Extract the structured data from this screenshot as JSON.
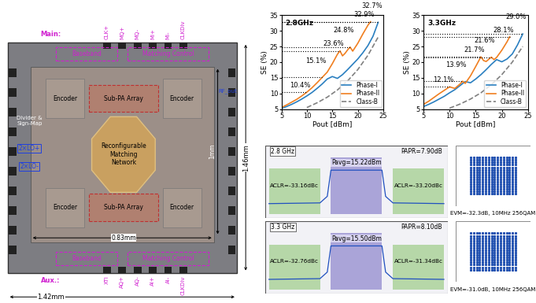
{
  "die_photo": {
    "top_label": "Main:",
    "top_pins": [
      "CLK+",
      "MQ+",
      "MQ-",
      "MI+",
      "MI-",
      "CLKDiv"
    ],
    "bottom_label": "Aux.:",
    "bottom_pins": [
      "XTI",
      "AQ+",
      "AQ-",
      "AI+",
      "AI-",
      "CLKDiv"
    ],
    "baseband": "Baseband",
    "matching_control": "Matching Control",
    "encoder": "Encoder",
    "sub_pa_array": "Sub-PA Array",
    "matching_network": "Reconfigurable\nMatching\nNetwork",
    "divider": "Divider &\nSign-Map",
    "lo_plus": "2×LO+",
    "lo_minus": "2×LO-",
    "rf_out": "RF_out",
    "height": "1.46mm",
    "width": "1.42mm",
    "core_width": "0.83mm",
    "core_height": "1mm"
  },
  "chart_data": [
    {
      "type": "line",
      "title": "2.8GHz",
      "xlabel": "Pout [dBm]",
      "ylabel": "SE (%)",
      "xlim": [
        5,
        25
      ],
      "xticks": [
        5,
        10,
        15,
        20,
        25
      ],
      "ylim": [
        5,
        35
      ],
      "yticks": [
        5,
        10,
        15,
        20,
        25,
        30,
        35
      ],
      "legend": "lower right",
      "series": [
        {
          "name": "Phase-I",
          "color": "#2a7fc0",
          "line_style": "solid",
          "x": [
            5,
            6,
            7,
            8,
            9,
            10,
            11,
            12,
            13,
            14,
            15,
            16,
            17,
            18,
            19,
            20,
            21,
            22,
            23,
            24
          ],
          "values": [
            5.2,
            5.8,
            6.5,
            7.3,
            8.2,
            9.2,
            10.3,
            11.6,
            13.0,
            14.6,
            15.4,
            14.8,
            16.0,
            17.6,
            19.3,
            21.0,
            23.0,
            25.3,
            28.3,
            32.7
          ]
        },
        {
          "name": "Phase-II",
          "color": "#f07f20",
          "line_style": "solid",
          "x": [
            5,
            6,
            7,
            8,
            9,
            10,
            11,
            12,
            13,
            14,
            15,
            16,
            16.5,
            17,
            17.5,
            18,
            18.5,
            19,
            20,
            21,
            22,
            22.5
          ],
          "values": [
            5.5,
            6.3,
            7.2,
            8.1,
            9.2,
            10.4,
            11.8,
            13.4,
            15.1,
            16.8,
            19.5,
            22.5,
            23.6,
            22.0,
            22.8,
            23.9,
            24.8,
            23.5,
            26.0,
            29.0,
            31.8,
            32.9
          ]
        },
        {
          "name": "Class-B",
          "color": "#808080",
          "line_style": "dashed",
          "x": [
            10,
            12,
            14,
            16,
            18,
            20,
            22,
            24
          ],
          "values": [
            5.5,
            7.0,
            8.8,
            11.1,
            14.0,
            17.6,
            22.2,
            28.0
          ]
        }
      ],
      "annotations": [
        {
          "x": 10,
          "y": 10.4,
          "label": "10.4%"
        },
        {
          "x": 13,
          "y": 15.1,
          "label": "15.1%"
        },
        {
          "x": 16.5,
          "y": 23.6,
          "label": "23.6%"
        },
        {
          "x": 18.5,
          "y": 24.8,
          "label": "24.8%"
        },
        {
          "x": 22.5,
          "y": 32.9,
          "label": "32.9%"
        },
        {
          "x": 24,
          "y": 32.7,
          "label": "32.7%"
        }
      ]
    },
    {
      "type": "line",
      "title": "3.3GHz",
      "xlabel": "Pout [dBm]",
      "ylabel": "SE (%)",
      "xlim": [
        5,
        25
      ],
      "xticks": [
        5,
        10,
        15,
        20,
        25
      ],
      "ylim": [
        5,
        35
      ],
      "yticks": [
        5,
        10,
        15,
        20,
        25,
        30,
        35
      ],
      "legend": "lower right",
      "series": [
        {
          "name": "Phase-I",
          "color": "#2a7fc0",
          "line_style": "solid",
          "x": [
            5,
            6,
            7,
            8,
            9,
            10,
            11,
            12,
            13,
            14,
            15,
            16,
            17,
            18,
            19,
            20,
            21,
            22,
            23,
            24
          ],
          "values": [
            5.8,
            6.5,
            7.3,
            8.2,
            9.1,
            10.2,
            11.2,
            12.5,
            13.8,
            13.4,
            14.6,
            16.0,
            17.6,
            19.3,
            20.8,
            20.1,
            21.0,
            22.6,
            25.5,
            29.0
          ]
        },
        {
          "name": "Phase-II",
          "color": "#f07f20",
          "line_style": "solid",
          "x": [
            5,
            6,
            7,
            8,
            9,
            10,
            11,
            12,
            12.5,
            13,
            14,
            15,
            16,
            16.5,
            17,
            18,
            18.5,
            19,
            20,
            21,
            21.5
          ],
          "values": [
            6.5,
            7.5,
            8.7,
            9.9,
            11.0,
            12.1,
            11.6,
            13.0,
            13.9,
            13.2,
            15.6,
            18.6,
            21.7,
            20.5,
            20.2,
            21.6,
            20.8,
            21.5,
            23.8,
            26.5,
            28.1
          ]
        },
        {
          "name": "Class-B",
          "color": "#808080",
          "line_style": "dashed",
          "x": [
            10,
            12,
            14,
            16,
            18,
            20,
            22,
            24
          ],
          "values": [
            5.3,
            6.6,
            8.2,
            10.2,
            12.8,
            16.0,
            20.0,
            25.0
          ]
        }
      ],
      "annotations": [
        {
          "x": 10,
          "y": 12.1,
          "label": "12.1%"
        },
        {
          "x": 12.5,
          "y": 13.9,
          "label": "13.9%"
        },
        {
          "x": 16,
          "y": 21.7,
          "label": "21.7%"
        },
        {
          "x": 18,
          "y": 21.6,
          "label": "21.6%"
        },
        {
          "x": 21.5,
          "y": 28.1,
          "label": "28.1%"
        },
        {
          "x": 24,
          "y": 29.0,
          "label": "29.0%"
        }
      ]
    }
  ],
  "spectra": [
    {
      "frequency": "2.8 GHz",
      "papr": "PAPR=7.90dB",
      "pavg": "Pavg=15.22dBm",
      "aclr_left": "ACLR=-33.16dBc",
      "aclr_right": "ACLR=-33.20dBc"
    },
    {
      "frequency": "3.3 GHz",
      "papr": "PAPR=8.10dB",
      "pavg": "Pavg=15.50dBm",
      "aclr_left": "ACLR=-32.76dBc",
      "aclr_right": "ACLR=-31.34dBc"
    }
  ],
  "constellations": [
    "EVM=-32.3dB, 10MHz 256QAM",
    "EVM=-31.0dB, 10MHz 256QAM"
  ]
}
